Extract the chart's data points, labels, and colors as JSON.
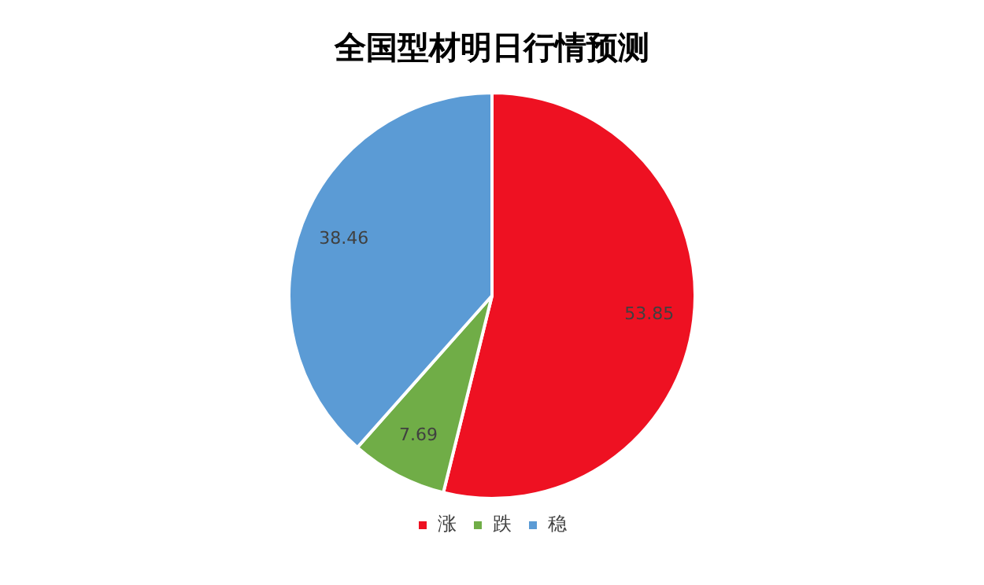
{
  "chart_data": {
    "type": "pie",
    "title": "全国型材明日行情预测",
    "categories": [
      "涨",
      "跌",
      "稳"
    ],
    "values": [
      53.85,
      7.69,
      38.46
    ],
    "colors": [
      "#ee1122",
      "#70ad47",
      "#5b9bd5"
    ],
    "data_labels": true,
    "legend": "bottom"
  }
}
